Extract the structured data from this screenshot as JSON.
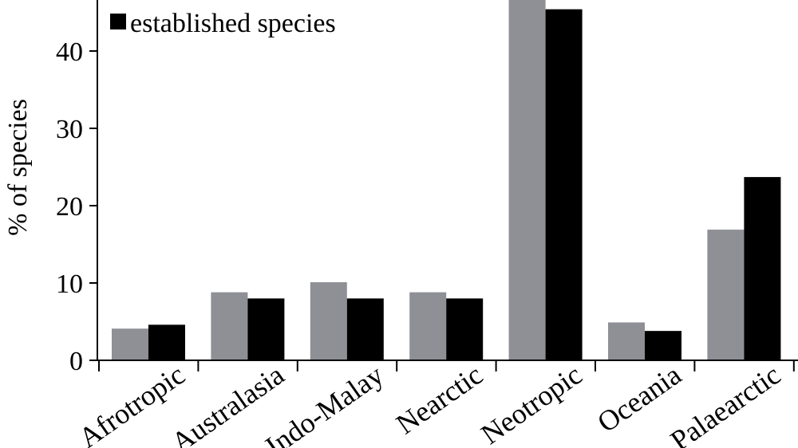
{
  "chart_data": {
    "type": "bar",
    "title": "",
    "xlabel": "",
    "ylabel": "% of species",
    "ylim": [
      0,
      47
    ],
    "yticks": [
      0,
      10,
      20,
      30,
      40
    ],
    "grid": false,
    "legend_placement": "top-left",
    "categories": [
      "Afrotropic",
      "Australasia",
      "Indo-Malay",
      "Nearctic",
      "Neotropic",
      "Oceania",
      "Palaearctic"
    ],
    "series": [
      {
        "color": "#8f9095",
        "values": [
          4.1,
          8.8,
          10.1,
          8.8,
          48,
          4.9,
          16.9
        ]
      },
      {
        "name": "established species",
        "color": "#000000",
        "values": [
          4.6,
          8.0,
          8.0,
          8.0,
          45.4,
          3.8,
          23.7
        ]
      }
    ]
  }
}
